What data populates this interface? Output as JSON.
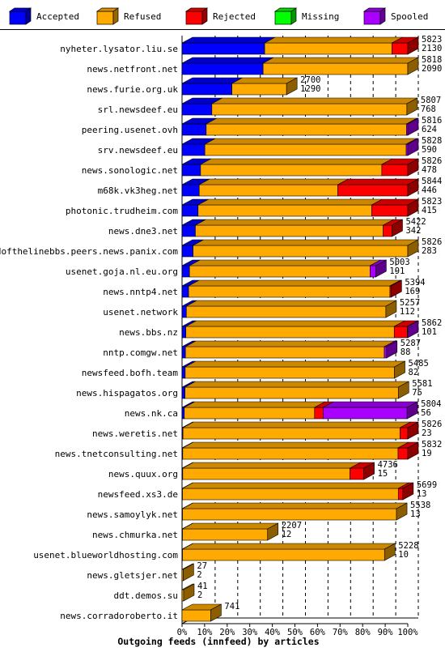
{
  "chart_data": {
    "type": "bar",
    "orientation": "horizontal",
    "stacked": true,
    "title": "Outgoing feeds (innfeed) by articles",
    "xlabel": "Outgoing feeds (innfeed) by articles",
    "xlim": [
      0,
      100
    ],
    "x_ticks": [
      "0%",
      "10%",
      "20%",
      "30%",
      "40%",
      "50%",
      "60%",
      "70%",
      "80%",
      "90%",
      "100%"
    ],
    "grid": true,
    "legend_position": "top",
    "legend": [
      {
        "name": "Accepted",
        "color": "#0000ff"
      },
      {
        "name": "Refused",
        "color": "#ffaa00"
      },
      {
        "name": "Rejected",
        "color": "#ff0000"
      },
      {
        "name": "Missing",
        "color": "#00ff00"
      },
      {
        "name": "Spooled",
        "color": "#aa00ff"
      }
    ],
    "rows": [
      {
        "label": "nyheter.lysator.liu.se",
        "total": "5823",
        "accepted": "2130",
        "accepted_pct": 36.6,
        "refused_pct": 56.4,
        "rejected_pct": 7.0,
        "missing_pct": 0,
        "spooled_pct": 0
      },
      {
        "label": "news.netfront.net",
        "total": "5818",
        "accepted": "2090",
        "accepted_pct": 35.9,
        "refused_pct": 64.1,
        "rejected_pct": 0,
        "missing_pct": 0,
        "spooled_pct": 0
      },
      {
        "label": "news.furie.org.uk",
        "total": "2700",
        "accepted": "1290",
        "accepted_pct": 22.1,
        "refused_pct": 24.2,
        "rejected_pct": 0,
        "missing_pct": 0,
        "spooled_pct": 0
      },
      {
        "label": "srl.newsdeef.eu",
        "total": "5807",
        "accepted": "768",
        "accepted_pct": 13.2,
        "refused_pct": 86.4,
        "rejected_pct": 0,
        "missing_pct": 0,
        "spooled_pct": 0
      },
      {
        "label": "peering.usenet.ovh",
        "total": "5816",
        "accepted": "624",
        "accepted_pct": 10.7,
        "refused_pct": 88.7,
        "rejected_pct": 0,
        "missing_pct": 0,
        "spooled_pct": 0.6
      },
      {
        "label": "srv.newsdeef.eu",
        "total": "5828",
        "accepted": "590",
        "accepted_pct": 10.1,
        "refused_pct": 89.2,
        "rejected_pct": 0,
        "missing_pct": 0,
        "spooled_pct": 0.7
      },
      {
        "label": "news.sonologic.net",
        "total": "5826",
        "accepted": "478",
        "accepted_pct": 8.2,
        "refused_pct": 80.3,
        "rejected_pct": 11.5,
        "missing_pct": 0,
        "spooled_pct": 0
      },
      {
        "label": "m68k.vk3heg.net",
        "total": "5844",
        "accepted": "446",
        "accepted_pct": 7.6,
        "refused_pct": 61.4,
        "rejected_pct": 31.0,
        "missing_pct": 0,
        "spooled_pct": 0
      },
      {
        "label": "photonic.trudheim.com",
        "total": "5823",
        "accepted": "415",
        "accepted_pct": 7.1,
        "refused_pct": 76.9,
        "rejected_pct": 16.0,
        "missing_pct": 0,
        "spooled_pct": 0
      },
      {
        "label": "news.dne3.net",
        "total": "5422",
        "accepted": "342",
        "accepted_pct": 5.9,
        "refused_pct": 83.2,
        "rejected_pct": 3.9,
        "missing_pct": 0,
        "spooled_pct": 0
      },
      {
        "label": "endofthelinebbs.peers.news.panix.com",
        "total": "5826",
        "accepted": "283",
        "accepted_pct": 4.9,
        "refused_pct": 95.1,
        "rejected_pct": 0,
        "missing_pct": 0,
        "spooled_pct": 0
      },
      {
        "label": "usenet.goja.nl.eu.org",
        "total": "5003",
        "accepted": "191",
        "accepted_pct": 3.3,
        "refused_pct": 80.0,
        "rejected_pct": 0,
        "missing_pct": 0,
        "spooled_pct": 2.5
      },
      {
        "label": "news.nntp4.net",
        "total": "5394",
        "accepted": "169",
        "accepted_pct": 2.9,
        "refused_pct": 89.2,
        "rejected_pct": 0.5,
        "missing_pct": 0,
        "spooled_pct": 0
      },
      {
        "label": "usenet.network",
        "total": "5257",
        "accepted": "112",
        "accepted_pct": 1.9,
        "refused_pct": 88.4,
        "rejected_pct": 0,
        "missing_pct": 0,
        "spooled_pct": 0
      },
      {
        "label": "news.bbs.nz",
        "total": "5862",
        "accepted": "101",
        "accepted_pct": 1.7,
        "refused_pct": 92.3,
        "rejected_pct": 5.8,
        "missing_pct": 0,
        "spooled_pct": 0.2
      },
      {
        "label": "nntp.comgw.net",
        "total": "5287",
        "accepted": "88",
        "accepted_pct": 1.5,
        "refused_pct": 88.1,
        "rejected_pct": 0,
        "missing_pct": 0,
        "spooled_pct": 1.0
      },
      {
        "label": "newsfeed.bofh.team",
        "total": "5485",
        "accepted": "82",
        "accepted_pct": 1.4,
        "refused_pct": 92.7,
        "rejected_pct": 0,
        "missing_pct": 0,
        "spooled_pct": 0
      },
      {
        "label": "news.hispagatos.org",
        "total": "5581",
        "accepted": "75",
        "accepted_pct": 1.3,
        "refused_pct": 94.5,
        "rejected_pct": 0,
        "missing_pct": 0,
        "spooled_pct": 0
      },
      {
        "label": "news.nk.ca",
        "total": "5804",
        "accepted": "56",
        "accepted_pct": 1.0,
        "refused_pct": 57.7,
        "rejected_pct": 3.8,
        "missing_pct": 0,
        "spooled_pct": 37.2
      },
      {
        "label": "news.weretis.net",
        "total": "5826",
        "accepted": "23",
        "accepted_pct": 0.4,
        "refused_pct": 96.2,
        "rejected_pct": 3.4,
        "missing_pct": 0,
        "spooled_pct": 0
      },
      {
        "label": "news.tnetconsulting.net",
        "total": "5832",
        "accepted": "19",
        "accepted_pct": 0.3,
        "refused_pct": 95.4,
        "rejected_pct": 4.3,
        "missing_pct": 0,
        "spooled_pct": 0
      },
      {
        "label": "news.quux.org",
        "total": "4736",
        "accepted": "15",
        "accepted_pct": 0.3,
        "refused_pct": 74.1,
        "rejected_pct": 6.1,
        "missing_pct": 0,
        "spooled_pct": 0
      },
      {
        "label": "newsfeed.xs3.de",
        "total": "5699",
        "accepted": "13",
        "accepted_pct": 0.2,
        "refused_pct": 95.6,
        "rejected_pct": 2.0,
        "missing_pct": 0,
        "spooled_pct": 0
      },
      {
        "label": "news.samoylyk.net",
        "total": "5538",
        "accepted": "13",
        "accepted_pct": 0.2,
        "refused_pct": 94.8,
        "rejected_pct": 0,
        "missing_pct": 0,
        "spooled_pct": 0
      },
      {
        "label": "news.chmurka.net",
        "total": "2207",
        "accepted": "12",
        "accepted_pct": 0.2,
        "refused_pct": 37.7,
        "rejected_pct": 0,
        "missing_pct": 0,
        "spooled_pct": 0
      },
      {
        "label": "usenet.blueworldhosting.com",
        "total": "5228",
        "accepted": "10",
        "accepted_pct": 0.2,
        "refused_pct": 89.5,
        "rejected_pct": 0,
        "missing_pct": 0,
        "spooled_pct": 0
      },
      {
        "label": "news.gletsjer.net",
        "total": "27",
        "accepted": "2",
        "accepted_pct": 0,
        "refused_pct": 0.5,
        "rejected_pct": 0,
        "missing_pct": 0,
        "spooled_pct": 0
      },
      {
        "label": "ddt.demos.su",
        "total": "41",
        "accepted": "2",
        "accepted_pct": 0,
        "refused_pct": 0.7,
        "rejected_pct": 0,
        "missing_pct": 0,
        "spooled_pct": 0
      },
      {
        "label": "news.corradoroberto.it",
        "total": "741",
        "accepted": "",
        "accepted_pct": 0,
        "refused_pct": 12.7,
        "rejected_pct": 0,
        "missing_pct": 0,
        "spooled_pct": 0
      }
    ]
  }
}
